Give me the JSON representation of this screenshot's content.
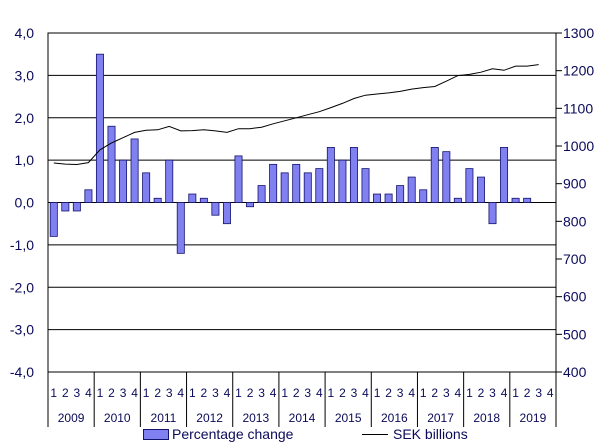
{
  "chart_data": {
    "type": "bar+line",
    "left_axis": {
      "ticks": [
        "4,0",
        "3,0",
        "2,0",
        "1,0",
        "0,0",
        "-1,0",
        "-2,0",
        "-3,0",
        "-4,0"
      ],
      "ylim": [
        -4,
        4
      ]
    },
    "right_axis": {
      "ticks": [
        "1300",
        "1200",
        "1100",
        "1000",
        "900",
        "800",
        "700",
        "600",
        "500",
        "400"
      ],
      "ylim": [
        400,
        1300
      ]
    },
    "years": [
      "2009",
      "2010",
      "2011",
      "2012",
      "2013",
      "2014",
      "2015",
      "2016",
      "2017",
      "2018",
      "2019"
    ],
    "quarter_labels": [
      "1",
      "2",
      "3",
      "4"
    ],
    "categories": [
      "2009 Q1",
      "2009 Q2",
      "2009 Q3",
      "2009 Q4",
      "2010 Q1",
      "2010 Q2",
      "2010 Q3",
      "2010 Q4",
      "2011 Q1",
      "2011 Q2",
      "2011 Q3",
      "2011 Q4",
      "2012 Q1",
      "2012 Q2",
      "2012 Q3",
      "2012 Q4",
      "2013 Q1",
      "2013 Q2",
      "2013 Q3",
      "2013 Q4",
      "2014 Q1",
      "2014 Q2",
      "2014 Q3",
      "2014 Q4",
      "2015 Q1",
      "2015 Q2",
      "2015 Q3",
      "2015 Q4",
      "2016 Q1",
      "2016 Q2",
      "2016 Q3",
      "2016 Q4",
      "2017 Q1",
      "2017 Q2",
      "2017 Q3",
      "2017 Q4",
      "2018 Q1",
      "2018 Q2",
      "2018 Q3",
      "2018 Q4",
      "2019 Q1",
      "2019 Q2",
      "2019 Q3",
      "2019 Q4"
    ],
    "series": [
      {
        "name": "Percentage change",
        "kind": "bar",
        "axis": "left",
        "color": "#8080f0",
        "values": [
          -0.8,
          -0.2,
          -0.2,
          0.3,
          3.5,
          1.8,
          1.0,
          1.5,
          0.7,
          0.1,
          1.0,
          -1.2,
          0.2,
          0.1,
          -0.3,
          -0.5,
          1.1,
          -0.1,
          0.4,
          0.9,
          0.7,
          0.9,
          0.7,
          0.8,
          1.3,
          1.0,
          1.3,
          0.8,
          0.2,
          0.2,
          0.4,
          0.6,
          0.3,
          1.3,
          1.2,
          0.1,
          0.8,
          0.6,
          -0.5,
          1.3,
          0.1,
          0.1,
          null,
          null
        ]
      },
      {
        "name": "SEK billions",
        "kind": "line",
        "axis": "right",
        "color": "#000000",
        "values": [
          955,
          952,
          951,
          956,
          990,
          1008,
          1022,
          1036,
          1042,
          1043,
          1052,
          1040,
          1041,
          1043,
          1040,
          1036,
          1046,
          1046,
          1050,
          1059,
          1067,
          1075,
          1083,
          1091,
          1102,
          1113,
          1126,
          1135,
          1138,
          1141,
          1145,
          1151,
          1155,
          1158,
          1172,
          1187,
          1190,
          1196,
          1205,
          1201,
          1212,
          1212,
          1216,
          null
        ]
      }
    ],
    "legend": [
      "Percentage change",
      "SEK billions"
    ],
    "legend_position": "bottom",
    "grid": "horizontal"
  }
}
